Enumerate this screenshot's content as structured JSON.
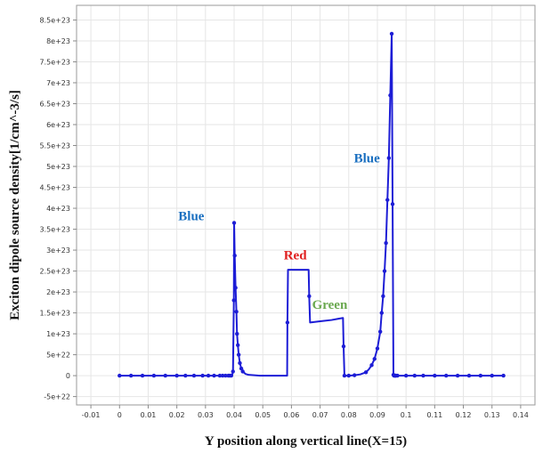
{
  "chart_data": {
    "type": "line",
    "title": "",
    "xlabel": "Y position along vertical line(X=15)",
    "ylabel": "Exciton dipole source density[1/cm^-3/s]",
    "xlim": [
      -0.015,
      0.145
    ],
    "ylim": [
      -7e+22,
      8.85e+23
    ],
    "grid": true,
    "x_ticks": [
      {
        "v": -0.01,
        "label": "-0.01"
      },
      {
        "v": 0,
        "label": "0"
      },
      {
        "v": 0.01,
        "label": "0.01"
      },
      {
        "v": 0.02,
        "label": "0.02"
      },
      {
        "v": 0.03,
        "label": "0.03"
      },
      {
        "v": 0.04,
        "label": "0.04"
      },
      {
        "v": 0.05,
        "label": "0.05"
      },
      {
        "v": 0.06,
        "label": "0.06"
      },
      {
        "v": 0.07,
        "label": "0.07"
      },
      {
        "v": 0.08,
        "label": "0.08"
      },
      {
        "v": 0.09,
        "label": "0.09"
      },
      {
        "v": 0.1,
        "label": "0.1"
      },
      {
        "v": 0.11,
        "label": "0.11"
      },
      {
        "v": 0.12,
        "label": "0.12"
      },
      {
        "v": 0.13,
        "label": "0.13"
      },
      {
        "v": 0.14,
        "label": "0.14"
      }
    ],
    "y_ticks": [
      {
        "v": -5e+22,
        "label": "-5e+22"
      },
      {
        "v": 0,
        "label": "0"
      },
      {
        "v": 5e+22,
        "label": "5e+22"
      },
      {
        "v": 1e+23,
        "label": "1e+23"
      },
      {
        "v": 1.5e+23,
        "label": "1.5e+23"
      },
      {
        "v": 2e+23,
        "label": "2e+23"
      },
      {
        "v": 2.5e+23,
        "label": "2.5e+23"
      },
      {
        "v": 3e+23,
        "label": "3e+23"
      },
      {
        "v": 3.5e+23,
        "label": "3.5e+23"
      },
      {
        "v": 4e+23,
        "label": "4e+23"
      },
      {
        "v": 4.5e+23,
        "label": "4.5e+23"
      },
      {
        "v": 5e+23,
        "label": "5e+23"
      },
      {
        "v": 5.5e+23,
        "label": "5.5e+23"
      },
      {
        "v": 6e+23,
        "label": "6e+23"
      },
      {
        "v": 6.5e+23,
        "label": "6.5e+23"
      },
      {
        "v": 7e+23,
        "label": "7e+23"
      },
      {
        "v": 7.5e+23,
        "label": "7.5e+23"
      },
      {
        "v": 8e+23,
        "label": "8e+23"
      },
      {
        "v": 8.5e+23,
        "label": "8.5e+23"
      }
    ],
    "series": [
      {
        "color": "#1d1dd6",
        "x": [
          0,
          0.004,
          0.008,
          0.012,
          0.016,
          0.02,
          0.023,
          0.026,
          0.029,
          0.031,
          0.033,
          0.035,
          0.036,
          0.037,
          0.038,
          0.0385,
          0.039,
          0.0393,
          0.0396,
          0.0399,
          0.04,
          0.0402,
          0.0405,
          0.0408,
          0.041,
          0.0413,
          0.0416,
          0.042,
          0.0425,
          0.043,
          0.044,
          0.045,
          0.047,
          0.049,
          0.051,
          0.053,
          0.055,
          0.057,
          0.0585,
          0.0586,
          0.0588,
          0.061,
          0.064,
          0.066,
          0.0662,
          0.0665,
          0.07,
          0.074,
          0.078,
          0.0782,
          0.0785,
          0.08,
          0.082,
          0.084,
          0.086,
          0.087,
          0.088,
          0.089,
          0.09,
          0.091,
          0.0915,
          0.092,
          0.0925,
          0.093,
          0.0935,
          0.094,
          0.0945,
          0.095,
          0.0953,
          0.0956,
          0.0958,
          0.096,
          0.0962,
          0.0963,
          0.0965,
          0.097,
          0.1,
          0.103,
          0.106,
          0.11,
          0.114,
          0.118,
          0.122,
          0.126,
          0.13,
          0.134
        ],
        "y": [
          0,
          0,
          0,
          0,
          0,
          0,
          0,
          0,
          0,
          0,
          0,
          0,
          0,
          0,
          0,
          0,
          0,
          1.1e+21,
          1e+22,
          1.8e+23,
          3.65e+23,
          2.87e+23,
          2.1e+23,
          1.53e+23,
          1e+23,
          7.3e+22,
          5e+22,
          3e+22,
          1.7e+22,
          1e+22,
          4e+21,
          2e+21,
          1e+21,
          0,
          0,
          0,
          0,
          0,
          0,
          1.27e+23,
          2.53e+23,
          2.53e+23,
          2.53e+23,
          2.53e+23,
          1.9e+23,
          1.27e+23,
          1.3e+23,
          1.33e+23,
          1.38e+23,
          7e+22,
          0,
          0,
          1e+21,
          3e+21,
          8e+21,
          1.5e+22,
          2.5e+22,
          4e+22,
          6.5e+22,
          1.05e+23,
          1.5e+23,
          1.9e+23,
          2.5e+23,
          3.17e+23,
          4.2e+23,
          5.2e+23,
          6.7e+23,
          8.17e+23,
          4.1e+23,
          2e+21,
          0,
          0,
          0,
          0,
          0,
          0,
          0,
          0,
          0,
          0,
          0,
          0,
          0,
          0,
          0,
          0
        ],
        "markers": [
          0,
          0.004,
          0.008,
          0.012,
          0.016,
          0.02,
          0.023,
          0.026,
          0.029,
          0.031,
          0.033,
          0.035,
          0.036,
          0.037,
          0.038,
          0.0385,
          0.039,
          0.0396,
          0.0399,
          0.04,
          0.0402,
          0.0405,
          0.0408,
          0.041,
          0.0413,
          0.0416,
          0.042,
          0.0425,
          0.043,
          0.0586,
          0.0662,
          0.0782,
          0.0785,
          0.08,
          0.082,
          0.086,
          0.088,
          0.089,
          0.09,
          0.091,
          0.0915,
          0.092,
          0.0925,
          0.093,
          0.0935,
          0.094,
          0.0945,
          0.095,
          0.0953,
          0.0956,
          0.0958,
          0.096,
          0.0962,
          0.0963,
          0.0965,
          0.097,
          0.1,
          0.103,
          0.106,
          0.11,
          0.114,
          0.118,
          0.122,
          0.126,
          0.13,
          0.134
        ]
      }
    ],
    "annotations": [
      {
        "text": "Blue",
        "x": 0.0205,
        "y": 3.71e+23,
        "color": "#1a6fc0"
      },
      {
        "text": "Red",
        "x": 0.0573,
        "y": 2.78e+23,
        "color": "#e02020"
      },
      {
        "text": "Green",
        "x": 0.0672,
        "y": 1.6e+23,
        "color": "#6aa84f"
      },
      {
        "text": "Blue",
        "x": 0.0818,
        "y": 5.1e+23,
        "color": "#1a6fc0"
      }
    ]
  }
}
